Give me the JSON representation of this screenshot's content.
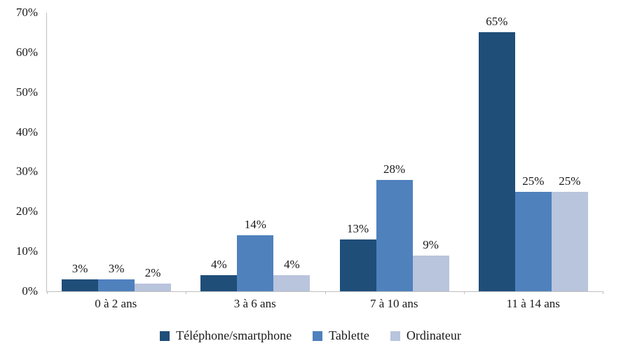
{
  "chart_data": {
    "type": "bar",
    "categories": [
      "0 à 2 ans",
      "3 à 6 ans",
      "7 à 10 ans",
      "11 à 14 ans"
    ],
    "series": [
      {
        "name": "Téléphone/smartphone",
        "color": "#1F4E79",
        "values": [
          3,
          4,
          13,
          65
        ]
      },
      {
        "name": "Tablette",
        "color": "#4F81BD",
        "values": [
          3,
          14,
          28,
          25
        ]
      },
      {
        "name": "Ordinateur",
        "color": "#B9C4DD",
        "values": [
          2,
          4,
          9,
          25
        ]
      }
    ],
    "value_suffix": "%",
    "data_labels": [
      [
        "3%",
        "4%",
        "13%",
        "65%"
      ],
      [
        "3%",
        "14%",
        "28%",
        "25%"
      ],
      [
        "2%",
        "4%",
        "9%",
        "25%"
      ]
    ],
    "y_axis": {
      "min": 0,
      "max": 70,
      "step": 10,
      "tick_labels": [
        "0%",
        "10%",
        "20%",
        "30%",
        "40%",
        "50%",
        "60%",
        "70%"
      ]
    },
    "grid": false,
    "legend_position": "bottom",
    "axis_color": "#BFBFBF",
    "background_color": "#FFFFFF"
  }
}
